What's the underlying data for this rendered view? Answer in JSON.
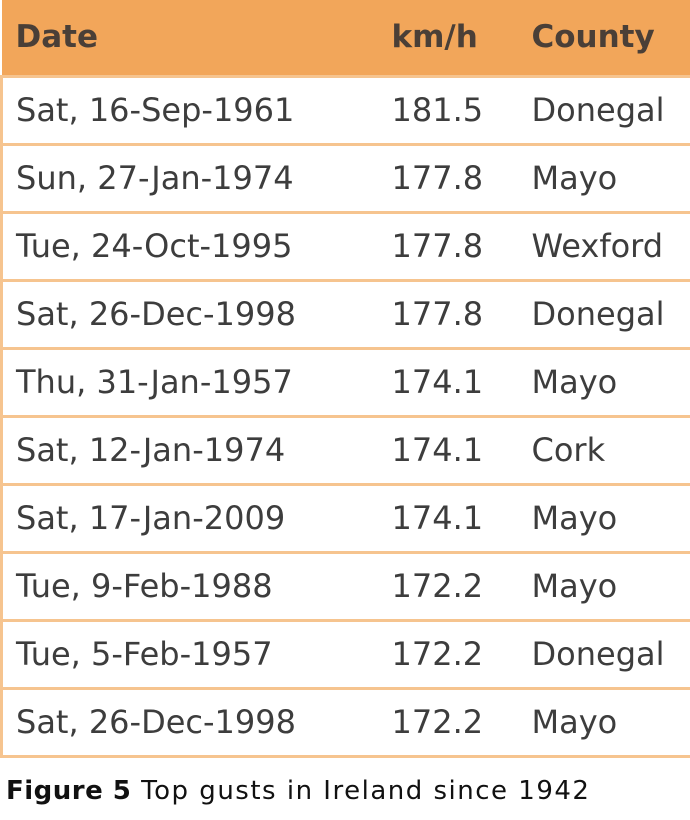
{
  "table": {
    "headers": {
      "date": "Date",
      "kmh": "km/h",
      "county": "County"
    },
    "rows": [
      {
        "date": "Sat, 16-Sep-1961",
        "kmh": "181.5",
        "county": "Donegal"
      },
      {
        "date": "Sun, 27-Jan-1974",
        "kmh": "177.8",
        "county": "Mayo"
      },
      {
        "date": "Tue, 24-Oct-1995",
        "kmh": "177.8",
        "county": "Wexford"
      },
      {
        "date": "Sat, 26-Dec-1998",
        "kmh": "177.8",
        "county": "Donegal"
      },
      {
        "date": "Thu, 31-Jan-1957",
        "kmh": "174.1",
        "county": "Mayo"
      },
      {
        "date": "Sat, 12-Jan-1974",
        "kmh": "174.1",
        "county": "Cork"
      },
      {
        "date": "Sat, 17-Jan-2009",
        "kmh": "174.1",
        "county": "Mayo"
      },
      {
        "date": "Tue, 9-Feb-1988",
        "kmh": "172.2",
        "county": "Mayo"
      },
      {
        "date": "Tue, 5-Feb-1957",
        "kmh": "172.2",
        "county": "Donegal"
      },
      {
        "date": "Sat, 26-Dec-1998",
        "kmh": "172.2",
        "county": "Mayo"
      }
    ]
  },
  "caption": {
    "label": "Figure 5",
    "text": "Top gusts in Ireland since 1942"
  },
  "colors": {
    "header_bg": "#f2a65a",
    "border": "#f6c48f"
  }
}
